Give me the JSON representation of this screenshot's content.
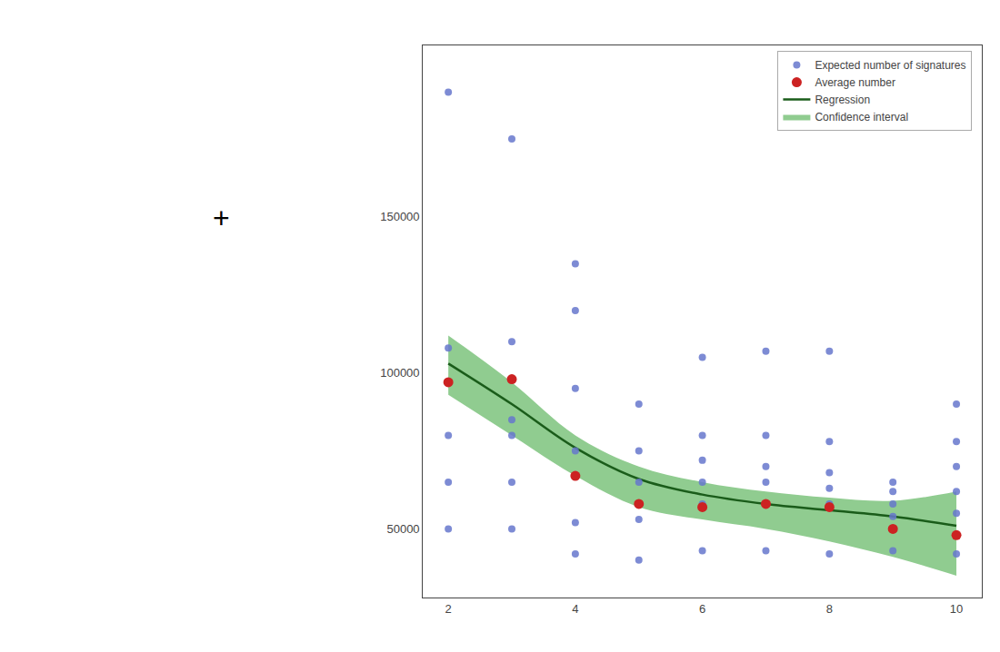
{
  "chart_data": {
    "type": "scatter",
    "series": [
      {
        "name": "Expected number of signatures",
        "type": "scatter",
        "color": "#6677cc",
        "x": [
          2,
          2,
          2,
          2,
          2,
          3,
          3,
          3,
          3,
          3,
          3,
          4,
          4,
          4,
          4,
          4,
          4,
          5,
          5,
          5,
          5,
          5,
          5,
          6,
          6,
          6,
          6,
          6,
          6,
          7,
          7,
          7,
          7,
          7,
          7,
          8,
          8,
          8,
          8,
          8,
          8,
          9,
          9,
          9,
          9,
          9,
          9,
          10,
          10,
          10,
          10,
          10,
          10
        ],
        "values": [
          190000,
          108000,
          80000,
          65000,
          50000,
          175000,
          110000,
          85000,
          80000,
          65000,
          50000,
          135000,
          120000,
          95000,
          75000,
          52000,
          42000,
          90000,
          75000,
          65000,
          58000,
          53000,
          40000,
          105000,
          80000,
          72000,
          65000,
          58000,
          43000,
          107000,
          80000,
          70000,
          65000,
          58000,
          43000,
          107000,
          78000,
          68000,
          63000,
          58000,
          42000,
          65000,
          62000,
          58000,
          54000,
          50000,
          43000,
          90000,
          78000,
          70000,
          62000,
          55000,
          42000
        ]
      },
      {
        "name": "Average number",
        "type": "scatter",
        "color": "#cc2222",
        "x": [
          2,
          3,
          4,
          5,
          6,
          7,
          8,
          9,
          10
        ],
        "values": [
          97000,
          98000,
          67000,
          58000,
          57000,
          58000,
          57000,
          50000,
          48000
        ]
      },
      {
        "name": "Regression",
        "type": "line",
        "color": "#1a5c1a",
        "x": [
          2,
          3,
          4,
          5,
          6,
          7,
          8,
          9,
          10
        ],
        "values": [
          103000,
          90000,
          76000,
          66000,
          61000,
          58000,
          56000,
          54000,
          51000
        ]
      },
      {
        "name": "Confidence interval",
        "type": "band",
        "color": "#90cc90",
        "x": [
          2,
          3,
          4,
          5,
          6,
          7,
          8,
          9,
          10
        ],
        "upper": [
          112000,
          97000,
          80000,
          70000,
          65000,
          62000,
          60000,
          59000,
          62000
        ],
        "lower": [
          93000,
          80000,
          67000,
          57000,
          53000,
          50000,
          46000,
          41000,
          35000
        ]
      }
    ],
    "xlim": [
      1.6,
      10.4
    ],
    "ylim": [
      28000,
      205000
    ],
    "xticks": [
      2,
      4,
      6,
      8,
      10
    ],
    "yticks": [
      50000,
      100000,
      150000
    ],
    "legend": "upper right",
    "grid": false,
    "annotations": [
      {
        "text": "+"
      }
    ]
  }
}
